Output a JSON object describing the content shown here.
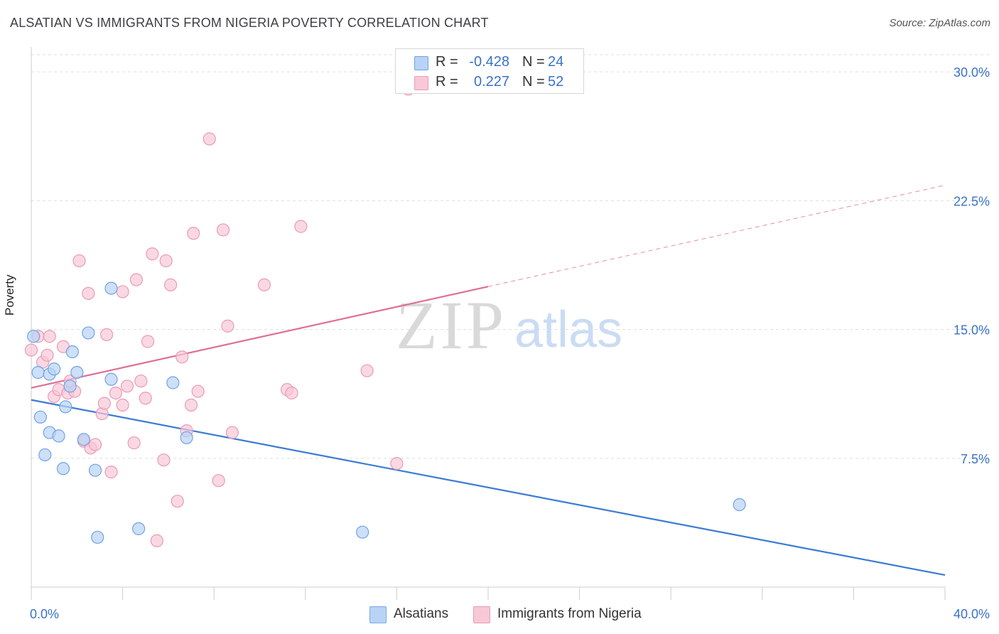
{
  "title": "ALSATIAN VS IMMIGRANTS FROM NIGERIA POVERTY CORRELATION CHART",
  "source": "Source: ZipAtlas.com",
  "watermark": {
    "zip": "ZIP",
    "atlas": "atlas"
  },
  "stats": [
    {
      "r_label": "R =",
      "r_value": "-0.428",
      "n_label": "N =",
      "n_value": "24",
      "color": "#a9c8f2",
      "border": "#6fa3e4"
    },
    {
      "r_label": "R =",
      "r_value": "0.227",
      "n_label": "N =",
      "n_value": "52",
      "color": "#f6bfd0",
      "border": "#e98fae"
    }
  ],
  "legend": [
    {
      "label": "Alsatians",
      "color": "#b8d3f5",
      "border": "#7aaae6"
    },
    {
      "label": "Immigrants from Nigeria",
      "color": "#f8c8d7",
      "border": "#ea9ab6"
    }
  ],
  "chart_data": {
    "type": "scatter",
    "title": "ALSATIAN VS IMMIGRANTS FROM NIGERIA POVERTY CORRELATION CHART",
    "xlabel": "",
    "ylabel": "Poverty",
    "xlim": [
      0,
      40
    ],
    "ylim": [
      0,
      31
    ],
    "x_tick_labels": [
      "0.0%",
      "40.0%"
    ],
    "y_ticks": [
      7.5,
      15.0,
      22.5,
      30.0
    ],
    "y_tick_labels": [
      "7.5%",
      "15.0%",
      "22.5%",
      "30.0%"
    ],
    "grid": true,
    "series": [
      {
        "name": "Alsatians",
        "color": "#3b7bd4",
        "fill": "#b8d3f5",
        "stroke": "#6fa3e4",
        "trend": {
          "x0": 0,
          "y0": 10.9,
          "x1": 40,
          "y1": 0.7,
          "dashed_from": null
        },
        "points": [
          [
            0.1,
            14.6
          ],
          [
            0.3,
            12.5
          ],
          [
            0.8,
            12.4
          ],
          [
            1.0,
            12.7
          ],
          [
            0.4,
            9.9
          ],
          [
            0.8,
            9.0
          ],
          [
            1.2,
            8.8
          ],
          [
            0.6,
            7.7
          ],
          [
            1.4,
            6.9
          ],
          [
            1.5,
            10.5
          ],
          [
            1.7,
            11.7
          ],
          [
            1.8,
            13.7
          ],
          [
            2.0,
            12.5
          ],
          [
            2.5,
            14.8
          ],
          [
            2.3,
            8.6
          ],
          [
            2.8,
            6.8
          ],
          [
            2.9,
            2.9
          ],
          [
            3.5,
            12.1
          ],
          [
            3.5,
            17.4
          ],
          [
            4.7,
            3.4
          ],
          [
            6.2,
            11.9
          ],
          [
            6.8,
            8.7
          ],
          [
            14.5,
            3.2
          ],
          [
            31.0,
            4.8
          ]
        ]
      },
      {
        "name": "Immigrants from Nigeria",
        "color": "#e06e96",
        "fill": "#f8c8d7",
        "stroke": "#ea9ab6",
        "trend": {
          "x0": 0,
          "y0": 11.6,
          "x1": 40,
          "y1": 23.4,
          "dashed_from": 20
        },
        "points": [
          [
            0.0,
            13.8
          ],
          [
            0.3,
            14.6
          ],
          [
            0.5,
            13.1
          ],
          [
            0.7,
            13.5
          ],
          [
            0.8,
            14.6
          ],
          [
            1.0,
            11.1
          ],
          [
            1.2,
            11.5
          ],
          [
            1.4,
            14.0
          ],
          [
            1.6,
            11.3
          ],
          [
            1.7,
            12.0
          ],
          [
            1.9,
            11.4
          ],
          [
            2.1,
            19.0
          ],
          [
            2.3,
            8.5
          ],
          [
            2.5,
            17.1
          ],
          [
            2.6,
            8.1
          ],
          [
            2.8,
            8.3
          ],
          [
            3.1,
            10.1
          ],
          [
            3.2,
            10.7
          ],
          [
            3.3,
            14.7
          ],
          [
            3.5,
            6.7
          ],
          [
            3.7,
            11.3
          ],
          [
            4.0,
            10.6
          ],
          [
            4.0,
            17.2
          ],
          [
            4.2,
            11.7
          ],
          [
            4.5,
            8.4
          ],
          [
            4.6,
            17.9
          ],
          [
            4.8,
            12.0
          ],
          [
            5.0,
            11.0
          ],
          [
            5.1,
            14.3
          ],
          [
            5.3,
            19.4
          ],
          [
            5.5,
            2.7
          ],
          [
            5.8,
            7.4
          ],
          [
            5.9,
            19.0
          ],
          [
            6.1,
            17.6
          ],
          [
            6.4,
            5.0
          ],
          [
            6.6,
            13.4
          ],
          [
            6.8,
            9.1
          ],
          [
            7.0,
            10.6
          ],
          [
            7.1,
            20.6
          ],
          [
            7.3,
            11.4
          ],
          [
            7.8,
            26.1
          ],
          [
            8.2,
            6.2
          ],
          [
            8.4,
            20.8
          ],
          [
            8.6,
            15.2
          ],
          [
            8.8,
            9.0
          ],
          [
            10.2,
            17.6
          ],
          [
            11.2,
            11.5
          ],
          [
            11.4,
            11.3
          ],
          [
            11.8,
            21.0
          ],
          [
            14.7,
            12.6
          ],
          [
            16.0,
            7.2
          ],
          [
            16.5,
            29.0
          ]
        ]
      }
    ]
  }
}
